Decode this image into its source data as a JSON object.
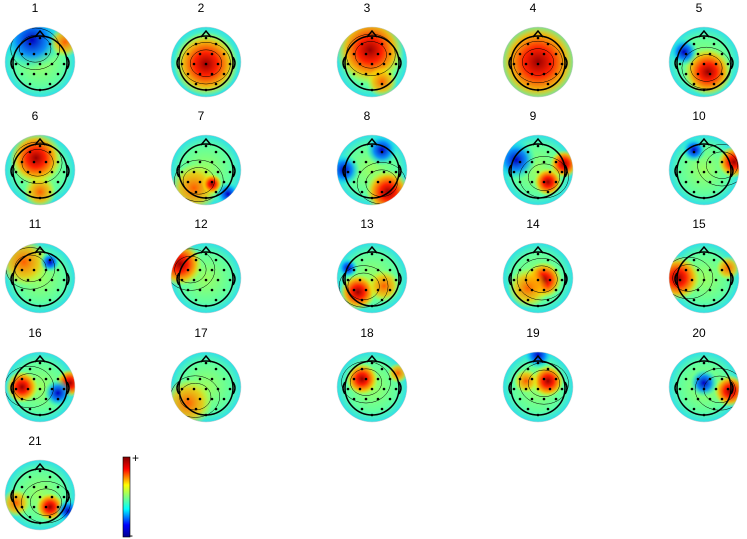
{
  "panels": [
    {
      "label": "1"
    },
    {
      "label": "2"
    },
    {
      "label": "3"
    },
    {
      "label": "4"
    },
    {
      "label": "5"
    },
    {
      "label": "6"
    },
    {
      "label": "7"
    },
    {
      "label": "8"
    },
    {
      "label": "9"
    },
    {
      "label": "10"
    },
    {
      "label": "11"
    },
    {
      "label": "12"
    },
    {
      "label": "13"
    },
    {
      "label": "14"
    },
    {
      "label": "15"
    },
    {
      "label": "16"
    },
    {
      "label": "17"
    },
    {
      "label": "18"
    },
    {
      "label": "19"
    },
    {
      "label": "20"
    },
    {
      "label": "21"
    }
  ],
  "colorbar": {
    "max_label": "+",
    "min_label": "-"
  }
}
